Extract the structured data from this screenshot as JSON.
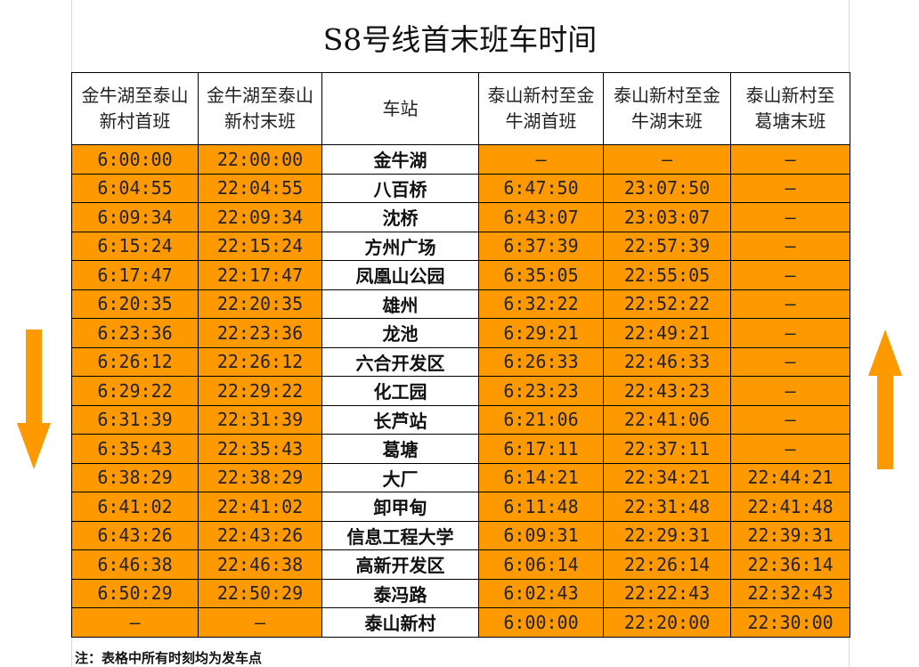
{
  "title": "S8号线首末班车时间",
  "accent_color": "#ff9900",
  "headers": [
    "金牛湖至泰山新村首班",
    "金牛湖至泰山新村末班",
    "车站",
    "泰山新村至金牛湖首班",
    "泰山新村至金牛湖末班",
    "泰山新村至葛塘末班"
  ],
  "rows": [
    [
      "6:00:00",
      "22:00:00",
      "金牛湖",
      "—",
      "—",
      "—"
    ],
    [
      "6:04:55",
      "22:04:55",
      "八百桥",
      "6:47:50",
      "23:07:50",
      "—"
    ],
    [
      "6:09:34",
      "22:09:34",
      "沈桥",
      "6:43:07",
      "23:03:07",
      "—"
    ],
    [
      "6:15:24",
      "22:15:24",
      "方州广场",
      "6:37:39",
      "22:57:39",
      "—"
    ],
    [
      "6:17:47",
      "22:17:47",
      "凤凰山公园",
      "6:35:05",
      "22:55:05",
      "—"
    ],
    [
      "6:20:35",
      "22:20:35",
      "雄州",
      "6:32:22",
      "22:52:22",
      "—"
    ],
    [
      "6:23:36",
      "22:23:36",
      "龙池",
      "6:29:21",
      "22:49:21",
      "—"
    ],
    [
      "6:26:12",
      "22:26:12",
      "六合开发区",
      "6:26:33",
      "22:46:33",
      "—"
    ],
    [
      "6:29:22",
      "22:29:22",
      "化工园",
      "6:23:23",
      "22:43:23",
      "—"
    ],
    [
      "6:31:39",
      "22:31:39",
      "长芦站",
      "6:21:06",
      "22:41:06",
      "—"
    ],
    [
      "6:35:43",
      "22:35:43",
      "葛塘",
      "6:17:11",
      "22:37:11",
      "—"
    ],
    [
      "6:38:29",
      "22:38:29",
      "大厂",
      "6:14:21",
      "22:34:21",
      "22:44:21"
    ],
    [
      "6:41:02",
      "22:41:02",
      "卸甲甸",
      "6:11:48",
      "22:31:48",
      "22:41:48"
    ],
    [
      "6:43:26",
      "22:43:26",
      "信息工程大学",
      "6:09:31",
      "22:29:31",
      "22:39:31"
    ],
    [
      "6:46:38",
      "22:46:38",
      "高新开发区",
      "6:06:14",
      "22:26:14",
      "22:36:14"
    ],
    [
      "6:50:29",
      "22:50:29",
      "泰冯路",
      "6:02:43",
      "22:22:43",
      "22:32:43"
    ],
    [
      "—",
      "—",
      "泰山新村",
      "6:00:00",
      "22:20:00",
      "22:30:00"
    ]
  ],
  "note": "注：表格中所有时刻均为发车点"
}
